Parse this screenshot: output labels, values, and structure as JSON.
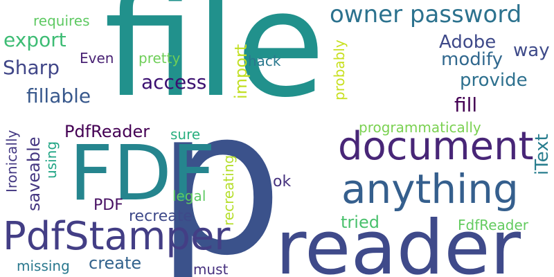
{
  "words": [
    {
      "text": "file",
      "color": "#21918c"
    },
    {
      "text": "p",
      "color": "#3b528b"
    },
    {
      "text": "reader",
      "color": "#3f4a8a"
    },
    {
      "text": "FDF",
      "color": "#25858e"
    },
    {
      "text": "document",
      "color": "#482677"
    },
    {
      "text": "anything",
      "color": "#355f8d"
    },
    {
      "text": "PdfStamper",
      "color": "#433e85"
    },
    {
      "text": "owner password",
      "color": "#2c728e"
    },
    {
      "text": "Adobe",
      "color": "#3e4989"
    },
    {
      "text": "modify",
      "color": "#31688e"
    },
    {
      "text": "way",
      "color": "#3e4a89"
    },
    {
      "text": "provide",
      "color": "#2d708e"
    },
    {
      "text": "fill",
      "color": "#440154"
    },
    {
      "text": "iText",
      "color": "#287d8e"
    },
    {
      "text": "programmatically",
      "color": "#7ad151"
    },
    {
      "text": "export",
      "color": "#3dbc74"
    },
    {
      "text": "requires",
      "color": "#5ec962"
    },
    {
      "text": "Even",
      "color": "#482173"
    },
    {
      "text": "pretty",
      "color": "#6ece58"
    },
    {
      "text": "hack",
      "color": "#2a788e"
    },
    {
      "text": "access",
      "color": "#3b0f70"
    },
    {
      "text": "import",
      "color": "#c2df23"
    },
    {
      "text": "probably",
      "color": "#c8e020"
    },
    {
      "text": "Sharp",
      "color": "#404688"
    },
    {
      "text": "fillable",
      "color": "#38588c"
    },
    {
      "text": "PdfReader",
      "color": "#440154"
    },
    {
      "text": "sure",
      "color": "#29af7f"
    },
    {
      "text": "saveable",
      "color": "#453781"
    },
    {
      "text": "Ironically",
      "color": "#443983"
    },
    {
      "text": "using",
      "color": "#21a585"
    },
    {
      "text": "recreating",
      "color": "#b5de2b"
    },
    {
      "text": "ok",
      "color": "#46327e"
    },
    {
      "text": "legal",
      "color": "#5ec962"
    },
    {
      "text": "PDF",
      "color": "#471063"
    },
    {
      "text": "recreate",
      "color": "#3e4989"
    },
    {
      "text": "tried",
      "color": "#4ac16d"
    },
    {
      "text": "FdfReader",
      "color": "#63cb5f"
    },
    {
      "text": "missing",
      "color": "#2a788e"
    },
    {
      "text": "create",
      "color": "#33638d"
    },
    {
      "text": "must",
      "color": "#46307e"
    }
  ]
}
